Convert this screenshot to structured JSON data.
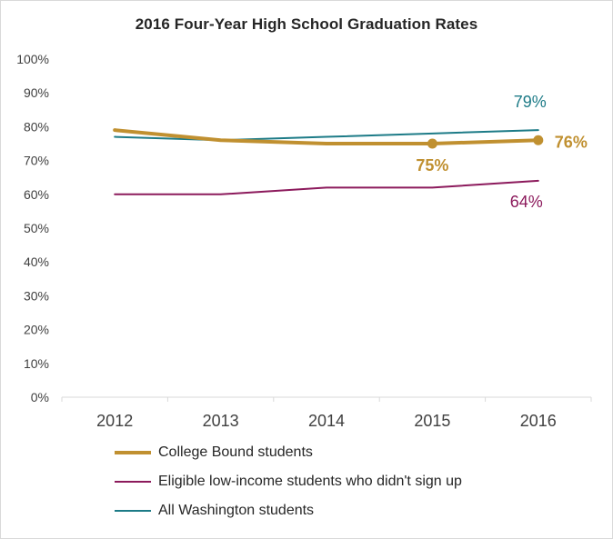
{
  "chart_data": {
    "type": "line",
    "title": "2016 Four-Year High School Graduation Rates",
    "xlabel": "",
    "ylabel": "",
    "categories": [
      "2012",
      "2013",
      "2014",
      "2015",
      "2016"
    ],
    "ylim": [
      0,
      100
    ],
    "yticks": [
      0,
      10,
      20,
      30,
      40,
      50,
      60,
      70,
      80,
      90,
      100
    ],
    "ytick_labels": [
      "0%",
      "10%",
      "20%",
      "30%",
      "40%",
      "50%",
      "60%",
      "70%",
      "80%",
      "90%",
      "100%"
    ],
    "grid": false,
    "legend_position": "bottom",
    "series": [
      {
        "name": "College Bound students",
        "values": [
          79,
          76,
          75,
          75,
          76
        ],
        "color": "#c09030",
        "emphasis": true,
        "markers": [
          3,
          4
        ],
        "annotations": [
          {
            "index": 3,
            "text": "75%"
          },
          {
            "index": 4,
            "text": "76%"
          }
        ]
      },
      {
        "name": "Eligible low-income students who didn't sign up",
        "values": [
          60,
          60,
          62,
          62,
          64
        ],
        "color": "#8c1a5c",
        "emphasis": false,
        "markers": [],
        "annotations": [
          {
            "index": 4,
            "text": "64%"
          }
        ]
      },
      {
        "name": "All Washington students",
        "values": [
          77,
          76,
          77,
          78,
          79
        ],
        "color": "#1d7b87",
        "emphasis": false,
        "markers": [],
        "annotations": [
          {
            "index": 4,
            "text": "79%"
          }
        ]
      }
    ]
  }
}
